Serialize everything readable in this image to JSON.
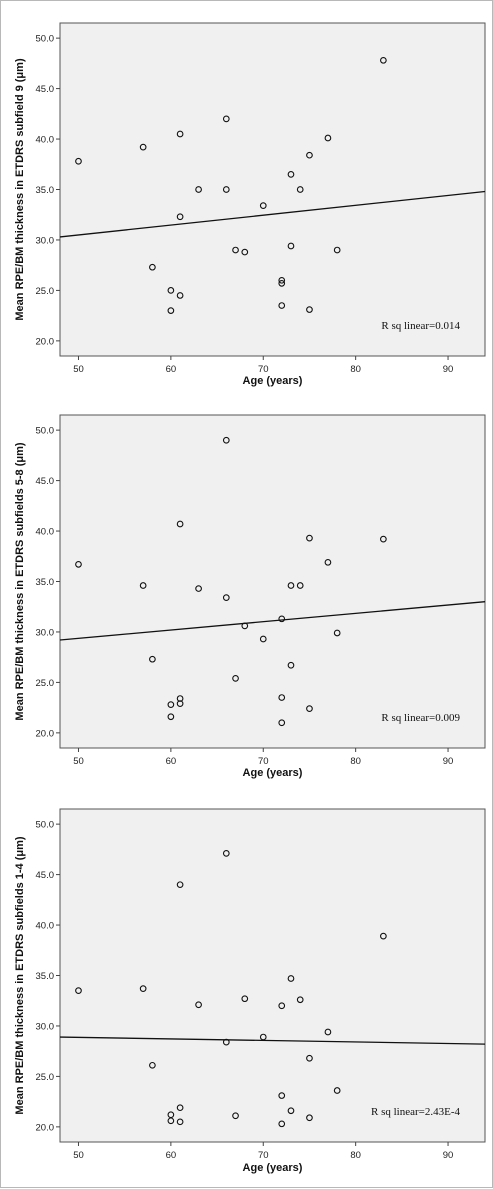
{
  "chart_data": [
    {
      "type": "scatter",
      "xlabel": "Age (years)",
      "ylabel": "Mean RPE/BM thickness in ETDRS subfield 9 (μm)",
      "xlim": [
        48,
        94
      ],
      "ylim": [
        18.5,
        51.5
      ],
      "xticks": [
        "50",
        "60",
        "70",
        "80",
        "90"
      ],
      "yticks": [
        "20.0",
        "25.0",
        "30.0",
        "35.0",
        "40.0",
        "45.0",
        "50.0"
      ],
      "annotation": "R sq linear=0.014",
      "fit_line": [
        [
          48,
          30.3
        ],
        [
          94,
          34.8
        ]
      ],
      "points": [
        [
          50,
          37.8
        ],
        [
          57,
          39.2
        ],
        [
          58,
          27.3
        ],
        [
          60,
          25.0
        ],
        [
          60,
          23.0
        ],
        [
          61,
          40.5
        ],
        [
          61,
          32.3
        ],
        [
          61,
          24.5
        ],
        [
          63,
          35.0
        ],
        [
          66,
          42.0
        ],
        [
          66,
          35.0
        ],
        [
          67,
          29.0
        ],
        [
          68,
          28.8
        ],
        [
          70,
          33.4
        ],
        [
          72,
          26.0
        ],
        [
          72,
          25.7
        ],
        [
          72,
          23.5
        ],
        [
          73,
          36.5
        ],
        [
          73,
          29.4
        ],
        [
          74,
          35.0
        ],
        [
          75,
          38.4
        ],
        [
          75,
          23.1
        ],
        [
          77,
          40.1
        ],
        [
          78,
          29.0
        ],
        [
          83,
          47.8
        ]
      ]
    },
    {
      "type": "scatter",
      "xlabel": "Age (years)",
      "ylabel": "Mean RPE/BM thickness in ETDRS subfields 5-8 (μm)",
      "xlim": [
        48,
        94
      ],
      "ylim": [
        18.5,
        51.5
      ],
      "xticks": [
        "50",
        "60",
        "70",
        "80",
        "90"
      ],
      "yticks": [
        "20.0",
        "25.0",
        "30.0",
        "35.0",
        "40.0",
        "45.0",
        "50.0"
      ],
      "annotation": "R sq linear=0.009",
      "fit_line": [
        [
          48,
          29.2
        ],
        [
          94,
          33.0
        ]
      ],
      "points": [
        [
          50,
          36.7
        ],
        [
          57,
          34.6
        ],
        [
          58,
          27.3
        ],
        [
          60,
          22.8
        ],
        [
          60,
          21.6
        ],
        [
          61,
          40.7
        ],
        [
          61,
          23.4
        ],
        [
          61,
          22.9
        ],
        [
          63,
          34.3
        ],
        [
          66,
          49.0
        ],
        [
          66,
          33.4
        ],
        [
          67,
          25.4
        ],
        [
          68,
          30.6
        ],
        [
          70,
          29.3
        ],
        [
          72,
          31.3
        ],
        [
          72,
          23.5
        ],
        [
          72,
          21.0
        ],
        [
          73,
          34.6
        ],
        [
          73,
          26.7
        ],
        [
          74,
          34.6
        ],
        [
          75,
          39.3
        ],
        [
          75,
          22.4
        ],
        [
          77,
          36.9
        ],
        [
          78,
          29.9
        ],
        [
          83,
          39.2
        ]
      ]
    },
    {
      "type": "scatter",
      "xlabel": "Age (years)",
      "ylabel": "Mean RPE/BM thickness in ETDRS subfields 1-4 (μm)",
      "xlim": [
        48,
        94
      ],
      "ylim": [
        18.5,
        51.5
      ],
      "xticks": [
        "50",
        "60",
        "70",
        "80",
        "90"
      ],
      "yticks": [
        "20.0",
        "25.0",
        "30.0",
        "35.0",
        "40.0",
        "45.0",
        "50.0"
      ],
      "annotation": "R sq linear=2.43E-4",
      "fit_line": [
        [
          48,
          28.9
        ],
        [
          94,
          28.2
        ]
      ],
      "points": [
        [
          50,
          33.5
        ],
        [
          57,
          33.7
        ],
        [
          58,
          26.1
        ],
        [
          60,
          21.2
        ],
        [
          60,
          20.6
        ],
        [
          61,
          44.0
        ],
        [
          61,
          21.9
        ],
        [
          61,
          20.5
        ],
        [
          63,
          32.1
        ],
        [
          66,
          47.1
        ],
        [
          66,
          28.4
        ],
        [
          67,
          21.1
        ],
        [
          68,
          32.7
        ],
        [
          70,
          28.9
        ],
        [
          72,
          32.0
        ],
        [
          72,
          23.1
        ],
        [
          72,
          20.3
        ],
        [
          73,
          34.7
        ],
        [
          73,
          21.6
        ],
        [
          74,
          32.6
        ],
        [
          75,
          26.8
        ],
        [
          75,
          20.9
        ],
        [
          77,
          29.4
        ],
        [
          78,
          23.6
        ],
        [
          83,
          38.9
        ]
      ]
    }
  ]
}
